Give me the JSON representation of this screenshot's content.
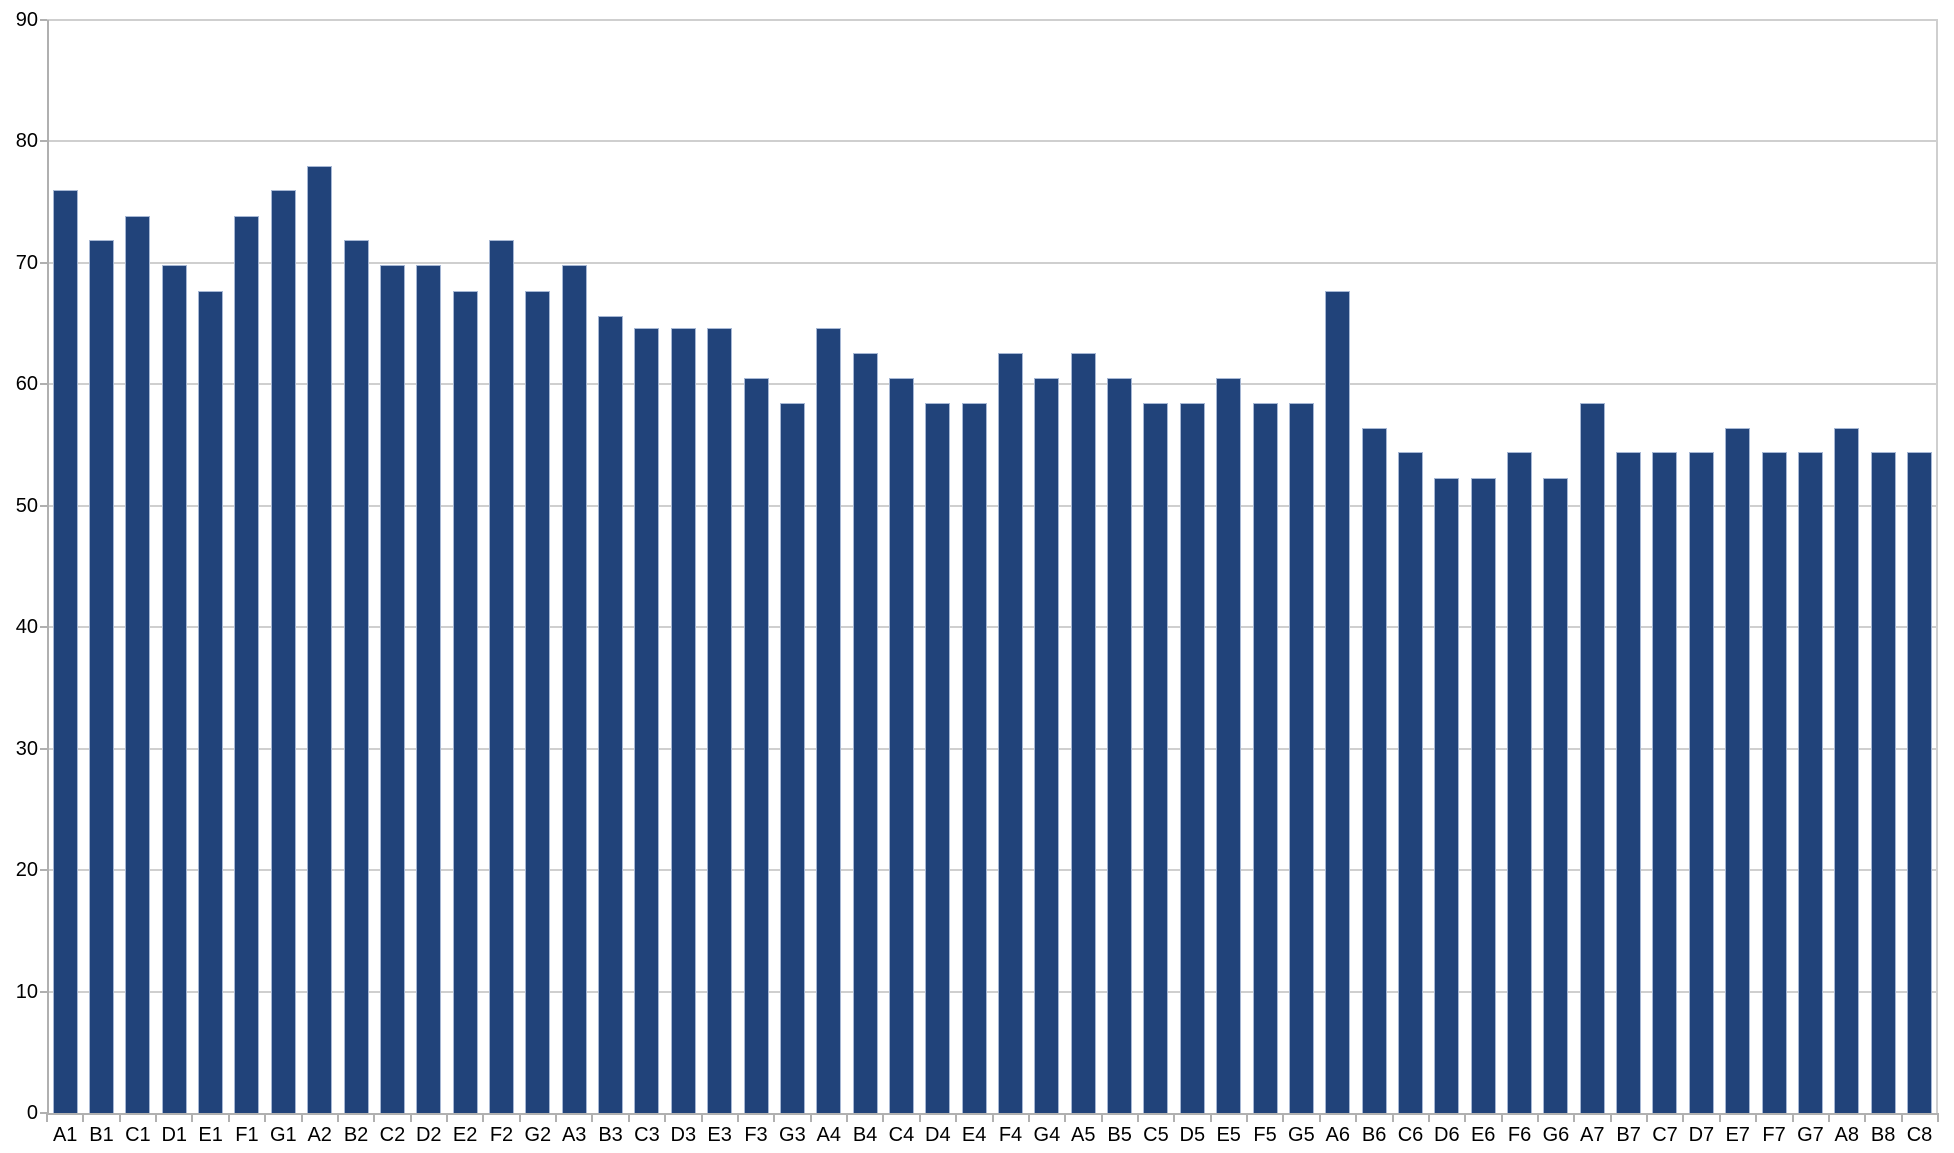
{
  "chart_data": {
    "type": "bar",
    "title": "",
    "xlabel": "",
    "ylabel": "",
    "categories": [
      "A1",
      "B1",
      "C1",
      "D1",
      "E1",
      "F1",
      "G1",
      "A2",
      "B2",
      "C2",
      "D2",
      "E2",
      "F2",
      "G2",
      "A3",
      "B3",
      "C3",
      "D3",
      "E3",
      "F3",
      "G3",
      "A4",
      "B4",
      "C4",
      "D4",
      "E4",
      "F4",
      "G4",
      "A5",
      "B5",
      "C5",
      "D5",
      "E5",
      "F5",
      "G5",
      "A6",
      "B6",
      "C6",
      "D6",
      "E6",
      "F6",
      "G6",
      "A7",
      "B7",
      "C7",
      "D7",
      "E7",
      "F7",
      "G7",
      "A8",
      "B8",
      "C8"
    ],
    "values": [
      76.0,
      71.9,
      73.9,
      69.8,
      67.7,
      73.9,
      76.0,
      78.0,
      71.9,
      69.8,
      69.8,
      67.7,
      71.9,
      67.7,
      69.8,
      65.6,
      64.6,
      64.6,
      64.6,
      60.5,
      58.5,
      64.6,
      62.6,
      60.5,
      58.5,
      58.5,
      62.6,
      60.5,
      62.6,
      60.5,
      58.5,
      58.5,
      60.5,
      58.5,
      58.5,
      67.7,
      56.4,
      54.4,
      52.3,
      52.3,
      54.4,
      52.3,
      58.5,
      54.4,
      54.4,
      54.4,
      56.4,
      54.4,
      54.4,
      56.4,
      54.4,
      54.4
    ],
    "ylim": [
      0,
      90
    ],
    "y_ticks": [
      0,
      10,
      20,
      30,
      40,
      50,
      60,
      70,
      80,
      90
    ],
    "grid": "horizontal-on",
    "legend": "none",
    "colors": {
      "bar_fill": "#21437a",
      "bar_border": "#a6b7d4",
      "gridline": "#cfcfcf",
      "axis_line": "#b0b0b0",
      "label_text": "#000000",
      "background": "#ffffff"
    }
  }
}
